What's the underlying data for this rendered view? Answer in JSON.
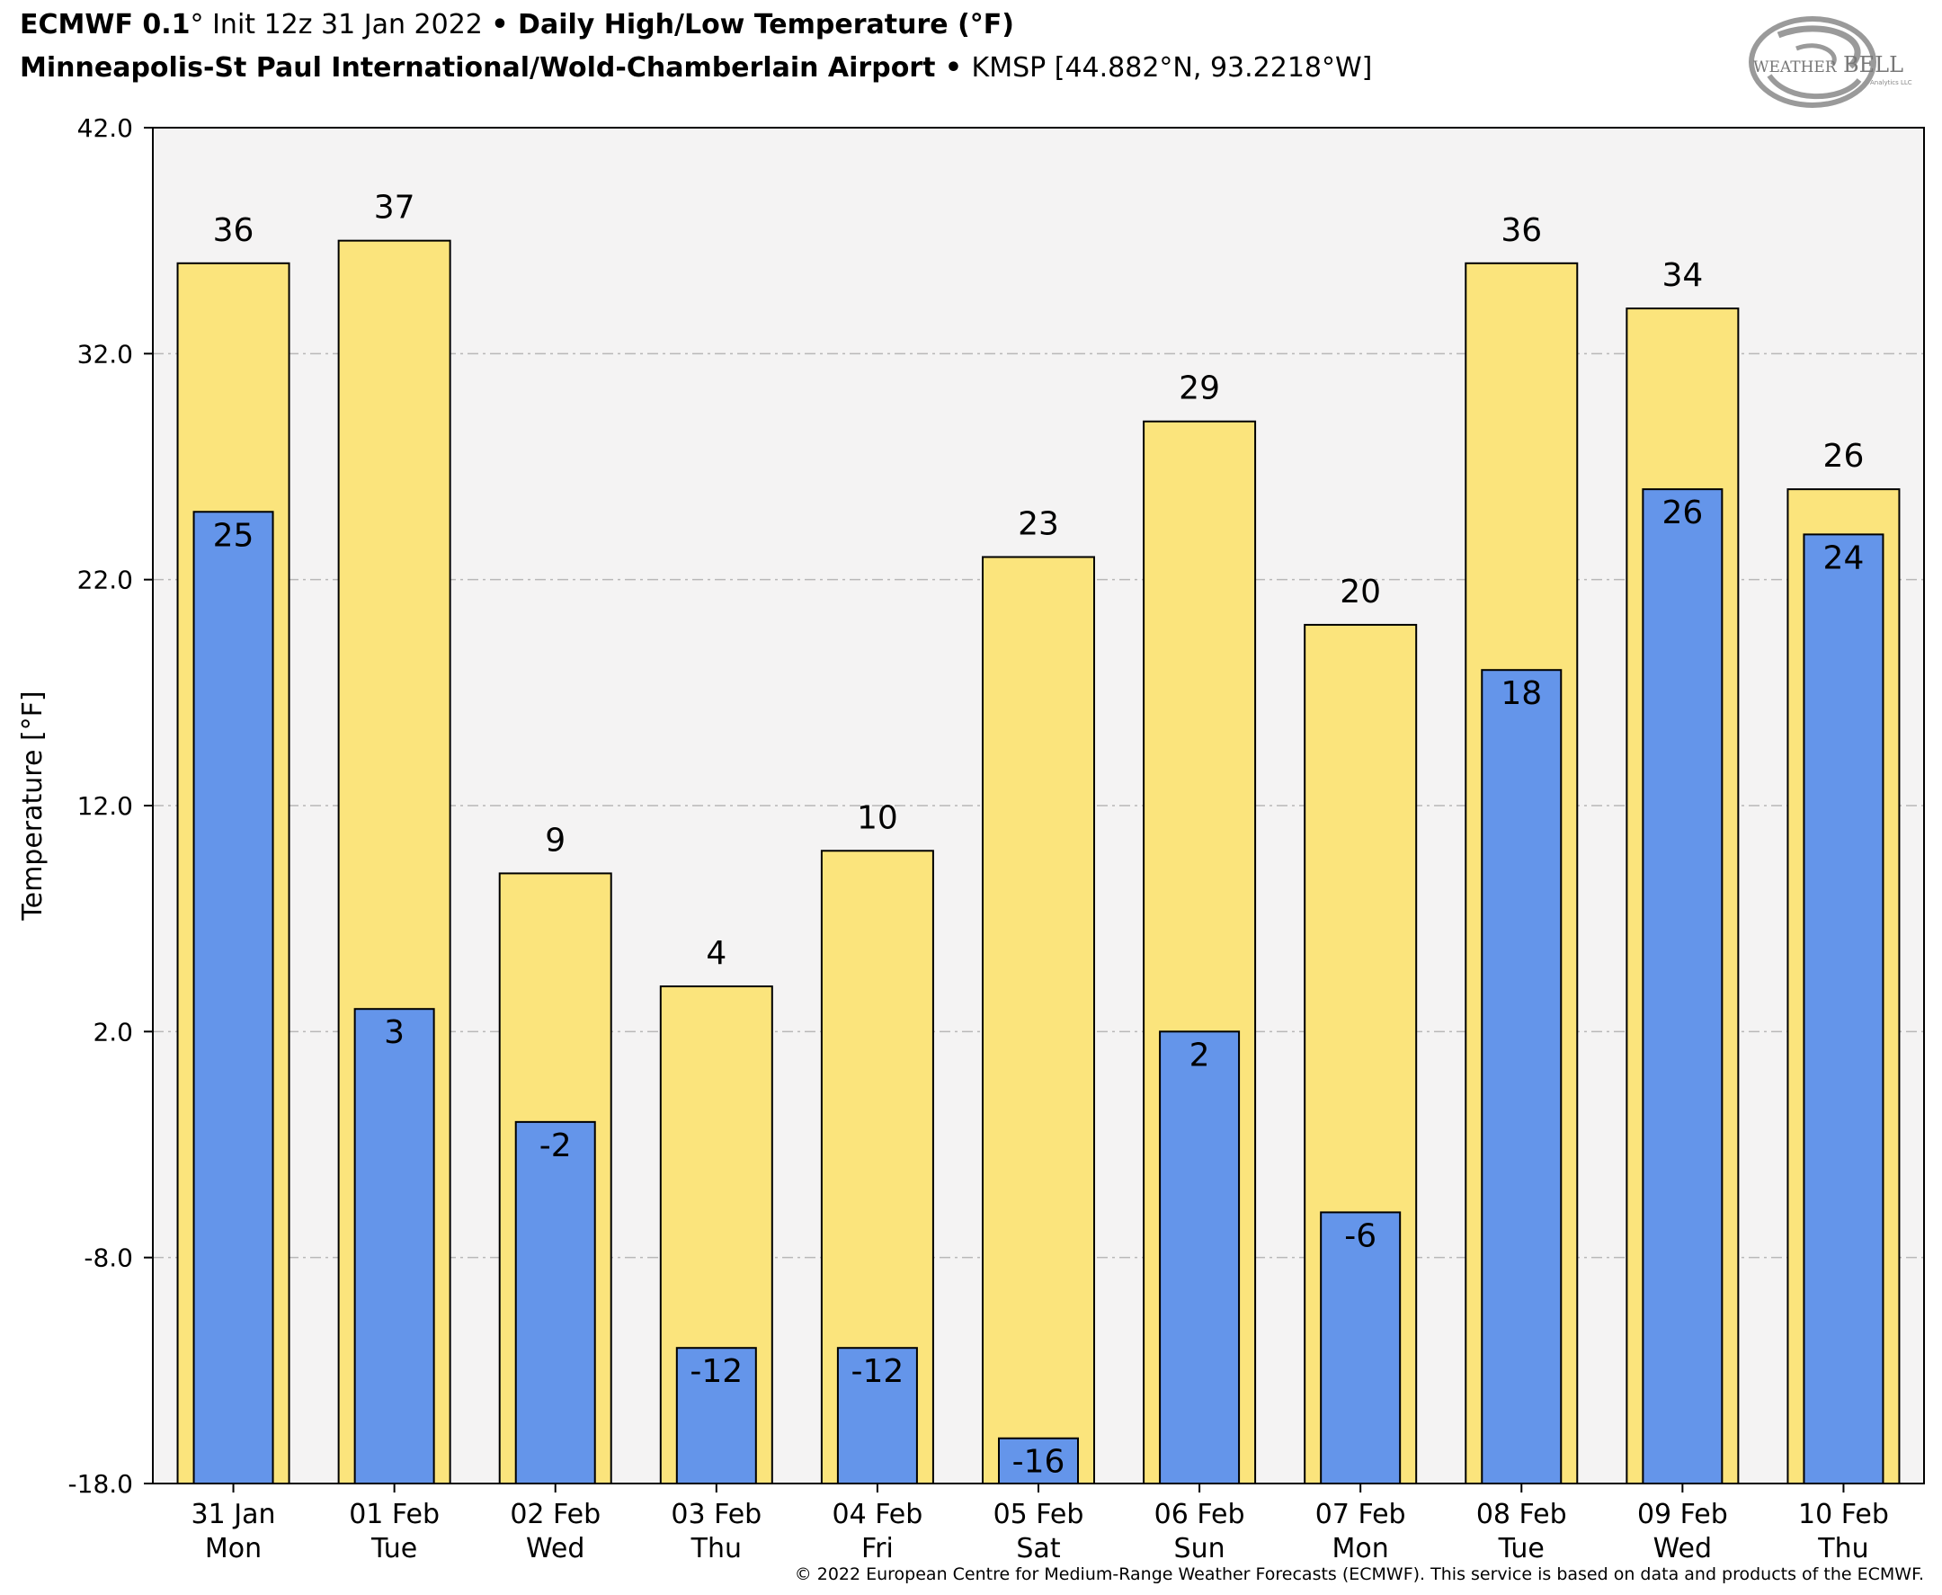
{
  "header": {
    "model": "ECMWF 0.1",
    "deg": "°",
    "init": " Init 12z 31 Jan 2022 ",
    "sep": "•",
    "product": " Daily High/Low Temperature (°F)",
    "station_name": "Minneapolis-St Paul International/Wold-Chamberlain Airport",
    "station_id": " KMSP [44.882°N, 93.2218°W]"
  },
  "logo": {
    "text_main": "WEATHER",
    "text_bell": "BELL",
    "text_sub": "Analytics LLC"
  },
  "footer": {
    "copyright": "© 2022 European Centre for Medium-Range Weather Forecasts (ECMWF). This service is based on data and products of the ECMWF."
  },
  "colors": {
    "high": "#fbe47c",
    "low": "#6495ea",
    "plot_bg": "#f4f3f3",
    "grid": "#b8b8b8"
  },
  "chart_data": {
    "type": "bar",
    "title": "Daily High/Low Temperature (°F)",
    "ylabel": "Temperature [°F]",
    "xlabel": "",
    "ylim": [
      -18,
      42
    ],
    "yticks": [
      "42.0",
      "32.0",
      "22.0",
      "12.0",
      "2.0",
      "-8.0",
      "-18.0"
    ],
    "ytick_values": [
      42,
      32,
      22,
      12,
      2,
      -8,
      -18
    ],
    "grid": true,
    "categories": [
      [
        "31 Jan",
        "Mon"
      ],
      [
        "01 Feb",
        "Tue"
      ],
      [
        "02 Feb",
        "Wed"
      ],
      [
        "03 Feb",
        "Thu"
      ],
      [
        "04 Feb",
        "Fri"
      ],
      [
        "05 Feb",
        "Sat"
      ],
      [
        "06 Feb",
        "Sun"
      ],
      [
        "07 Feb",
        "Mon"
      ],
      [
        "08 Feb",
        "Tue"
      ],
      [
        "09 Feb",
        "Wed"
      ],
      [
        "10 Feb",
        "Thu"
      ]
    ],
    "series": [
      {
        "name": "High",
        "values": [
          36,
          37,
          9,
          4,
          10,
          23,
          29,
          20,
          36,
          34,
          26
        ],
        "labels": [
          "36",
          "37",
          "9",
          "4",
          "10",
          "23",
          "29",
          "20",
          "36",
          "34",
          "26"
        ]
      },
      {
        "name": "Low",
        "values": [
          25,
          3,
          -2,
          -12,
          -12,
          -16,
          2,
          -6,
          18,
          26,
          24
        ],
        "labels": [
          "25",
          "3",
          "-2",
          "-12",
          "-12",
          "-16",
          "2",
          "-6",
          "18",
          "26",
          "24"
        ]
      }
    ]
  }
}
